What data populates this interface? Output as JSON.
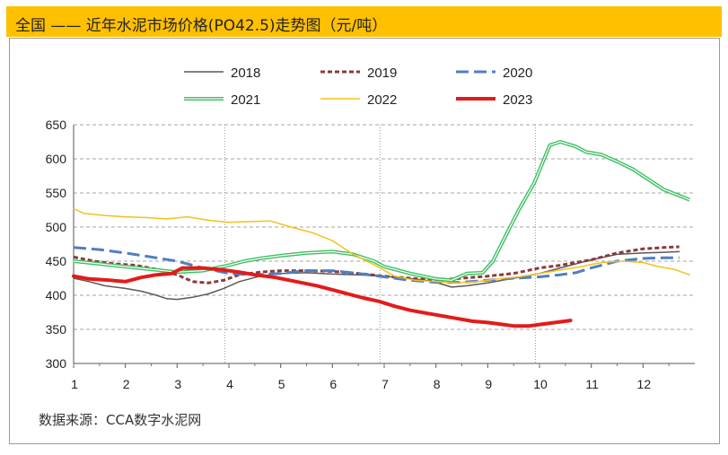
{
  "title": "全国 —— 近年水泥市场价格(PO42.5)走势图（元/吨）",
  "source": "数据来源：CCA数字水泥网",
  "chart_data": {
    "type": "line",
    "title": "全国 —— 近年水泥市场价格(PO42.5)走势图（元/吨）",
    "xlabel": "",
    "ylabel": "",
    "x_ticks": [
      "1",
      "2",
      "3",
      "4",
      "5",
      "6",
      "7",
      "8",
      "9",
      "10",
      "11",
      "12"
    ],
    "y_ticks": [
      "300",
      "350",
      "400",
      "450",
      "500",
      "550",
      "600",
      "650"
    ],
    "ylim": [
      300,
      650
    ],
    "xlim": [
      1,
      13
    ],
    "grid": "horizontal dashed; vertical dotted at 4, 7, 10",
    "legend_position": "top",
    "series": [
      {
        "name": "2018",
        "color": "#595959",
        "style": "solid",
        "width": 1.5,
        "points": [
          [
            1,
            425
          ],
          [
            1.3,
            420
          ],
          [
            1.6,
            414
          ],
          [
            2,
            410
          ],
          [
            2.3,
            406
          ],
          [
            2.6,
            400
          ],
          [
            2.8,
            395
          ],
          [
            3,
            394
          ],
          [
            3.3,
            397
          ],
          [
            3.6,
            402
          ],
          [
            3.9,
            410
          ],
          [
            4.2,
            420
          ],
          [
            4.6,
            428
          ],
          [
            5,
            432
          ],
          [
            5.5,
            433
          ],
          [
            6,
            431
          ],
          [
            6.5,
            430
          ],
          [
            7,
            428
          ],
          [
            7.4,
            425
          ],
          [
            7.8,
            422
          ],
          [
            8,
            419
          ],
          [
            8.3,
            412
          ],
          [
            8.6,
            414
          ],
          [
            9,
            418
          ],
          [
            9.5,
            425
          ],
          [
            10,
            432
          ],
          [
            10.5,
            442
          ],
          [
            11,
            452
          ],
          [
            11.5,
            460
          ],
          [
            12,
            462
          ],
          [
            12.4,
            463
          ],
          [
            12.7,
            464
          ]
        ]
      },
      {
        "name": "2019",
        "color": "#8b3a3a",
        "style": "dash",
        "width": 3,
        "points": [
          [
            1,
            456
          ],
          [
            1.4,
            450
          ],
          [
            1.8,
            446
          ],
          [
            2.2,
            444
          ],
          [
            2.6,
            438
          ],
          [
            3,
            430
          ],
          [
            3.3,
            420
          ],
          [
            3.6,
            418
          ],
          [
            3.9,
            422
          ],
          [
            4.2,
            430
          ],
          [
            4.6,
            434
          ],
          [
            5,
            436
          ],
          [
            5.5,
            436
          ],
          [
            6,
            435
          ],
          [
            6.5,
            432
          ],
          [
            7,
            428
          ],
          [
            7.5,
            425
          ],
          [
            8,
            422
          ],
          [
            8.5,
            425
          ],
          [
            9,
            428
          ],
          [
            9.5,
            432
          ],
          [
            10,
            440
          ],
          [
            10.4,
            444
          ],
          [
            10.7,
            448
          ],
          [
            11,
            452
          ],
          [
            11.5,
            462
          ],
          [
            12,
            468
          ],
          [
            12.4,
            470
          ],
          [
            12.7,
            471
          ]
        ]
      },
      {
        "name": "2020",
        "color": "#4f7ec2",
        "style": "longdash",
        "width": 3,
        "points": [
          [
            1,
            470
          ],
          [
            1.5,
            467
          ],
          [
            2,
            462
          ],
          [
            2.5,
            456
          ],
          [
            3,
            450
          ],
          [
            3.5,
            440
          ],
          [
            4,
            432
          ],
          [
            4.5,
            430
          ],
          [
            5,
            432
          ],
          [
            5.5,
            436
          ],
          [
            6,
            436
          ],
          [
            6.5,
            432
          ],
          [
            7,
            427
          ],
          [
            7.5,
            422
          ],
          [
            8,
            419
          ],
          [
            8.5,
            419
          ],
          [
            9,
            422
          ],
          [
            9.5,
            425
          ],
          [
            10,
            427
          ],
          [
            10.4,
            430
          ],
          [
            10.7,
            433
          ],
          [
            11,
            440
          ],
          [
            11.5,
            450
          ],
          [
            12,
            454
          ],
          [
            12.4,
            455
          ],
          [
            12.7,
            455
          ]
        ]
      },
      {
        "name": "2021",
        "color": "#3dbf60",
        "style": "double",
        "width": 2,
        "points": [
          [
            1,
            450
          ],
          [
            1.5,
            446
          ],
          [
            2,
            442
          ],
          [
            2.5,
            438
          ],
          [
            3,
            434
          ],
          [
            3.5,
            436
          ],
          [
            4,
            444
          ],
          [
            4.3,
            450
          ],
          [
            4.6,
            454
          ],
          [
            5,
            458
          ],
          [
            5.5,
            462
          ],
          [
            6,
            464
          ],
          [
            6.4,
            460
          ],
          [
            6.8,
            450
          ],
          [
            7,
            442
          ],
          [
            7.5,
            432
          ],
          [
            8,
            424
          ],
          [
            8.3,
            422
          ],
          [
            8.6,
            432
          ],
          [
            8.9,
            433
          ],
          [
            9.1,
            450
          ],
          [
            9.3,
            480
          ],
          [
            9.6,
            525
          ],
          [
            9.9,
            565
          ],
          [
            10.2,
            620
          ],
          [
            10.4,
            625
          ],
          [
            10.7,
            618
          ],
          [
            10.9,
            610
          ],
          [
            11.2,
            606
          ],
          [
            11.5,
            596
          ],
          [
            11.8,
            585
          ],
          [
            12.1,
            570
          ],
          [
            12.4,
            555
          ],
          [
            12.7,
            546
          ],
          [
            12.9,
            540
          ]
        ]
      },
      {
        "name": "2022",
        "color": "#f2c21b",
        "style": "solid",
        "width": 1.5,
        "points": [
          [
            1,
            527
          ],
          [
            1.2,
            520
          ],
          [
            1.6,
            517
          ],
          [
            2,
            515
          ],
          [
            2.4,
            514
          ],
          [
            2.8,
            512
          ],
          [
            3.2,
            515
          ],
          [
            3.6,
            510
          ],
          [
            4,
            507
          ],
          [
            4.4,
            508
          ],
          [
            4.8,
            509
          ],
          [
            5.2,
            500
          ],
          [
            5.6,
            492
          ],
          [
            6,
            480
          ],
          [
            6.4,
            460
          ],
          [
            6.8,
            445
          ],
          [
            7.2,
            428
          ],
          [
            7.6,
            422
          ],
          [
            8,
            420
          ],
          [
            8.4,
            418
          ],
          [
            8.8,
            420
          ],
          [
            9.2,
            424
          ],
          [
            9.6,
            427
          ],
          [
            10,
            432
          ],
          [
            10.4,
            437
          ],
          [
            10.8,
            442
          ],
          [
            11.2,
            448
          ],
          [
            11.6,
            450
          ],
          [
            12,
            448
          ],
          [
            12.3,
            442
          ],
          [
            12.6,
            438
          ],
          [
            12.9,
            430
          ]
        ]
      },
      {
        "name": "2023",
        "color": "#e31b1b",
        "style": "solid",
        "width": 4,
        "points": [
          [
            1,
            428
          ],
          [
            1.3,
            424
          ],
          [
            1.7,
            422
          ],
          [
            2,
            420
          ],
          [
            2.3,
            426
          ],
          [
            2.6,
            430
          ],
          [
            2.9,
            432
          ],
          [
            3.1,
            440
          ],
          [
            3.5,
            440
          ],
          [
            3.9,
            437
          ],
          [
            4.2,
            434
          ],
          [
            4.5,
            430
          ],
          [
            4.9,
            426
          ],
          [
            5.3,
            420
          ],
          [
            5.7,
            414
          ],
          [
            6,
            408
          ],
          [
            6.3,
            402
          ],
          [
            6.6,
            396
          ],
          [
            6.9,
            391
          ],
          [
            7.2,
            384
          ],
          [
            7.5,
            378
          ],
          [
            7.8,
            374
          ],
          [
            8.1,
            370
          ],
          [
            8.4,
            366
          ],
          [
            8.7,
            362
          ],
          [
            9,
            360
          ],
          [
            9.2,
            358
          ],
          [
            9.5,
            355
          ],
          [
            9.8,
            355
          ],
          [
            10.1,
            358
          ],
          [
            10.4,
            361
          ],
          [
            10.6,
            363
          ]
        ]
      }
    ]
  }
}
